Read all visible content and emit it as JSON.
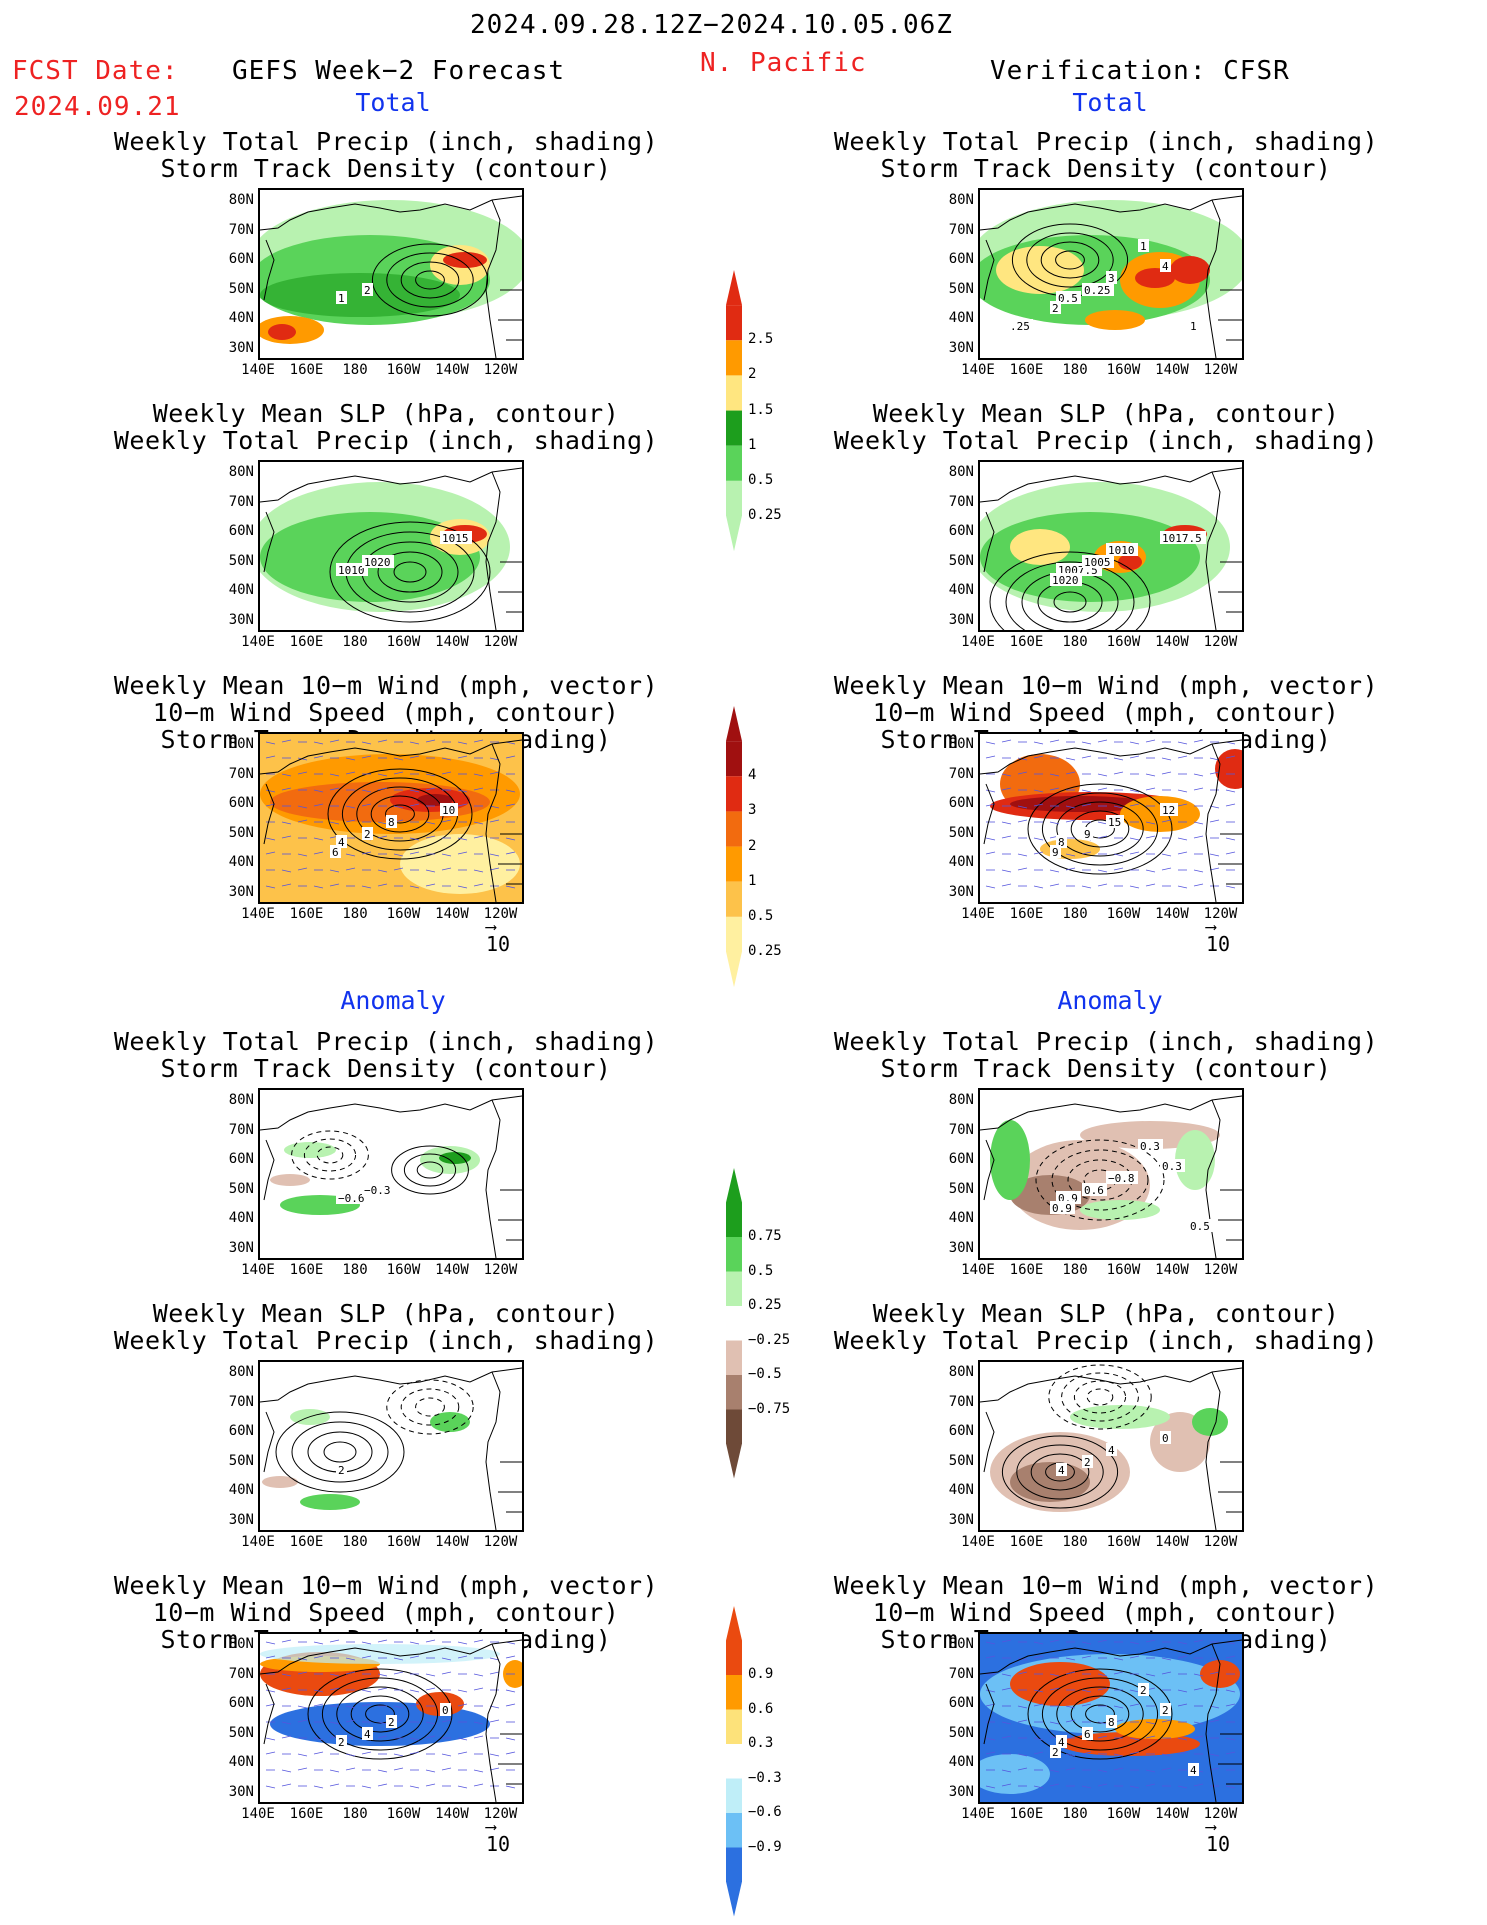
{
  "header": {
    "date_range": "2024.09.28.12Z−2024.10.05.06Z",
    "fcst_label": "FCST Date:",
    "fcst_date": "2024.09.21",
    "model_title": "GEFS Week−2 Forecast",
    "region": "N. Pacific",
    "verification": "Verification: CFSR"
  },
  "sections": {
    "total": "Total",
    "anomaly": "Anomaly"
  },
  "panel_titles": {
    "precip_track": [
      "Weekly Total Precip (inch, shading)",
      "Storm Track Density (contour)"
    ],
    "slp_precip": [
      "Weekly Mean SLP (hPa, contour)",
      "Weekly Total Precip (inch, shading)"
    ],
    "wind_track": [
      "Weekly Mean 10−m Wind (mph, vector)",
      "10−m Wind Speed (mph, contour)",
      "Storm Track Density (shading)"
    ]
  },
  "axes": {
    "lat_labels": [
      "80N",
      "70N",
      "60N",
      "50N",
      "40N",
      "30N"
    ],
    "lon_labels": [
      "140E",
      "160E",
      "180",
      "160W",
      "140W",
      "120W"
    ]
  },
  "vector_ref": "10",
  "colorbars": {
    "total_precip": {
      "labels": [
        "2.5",
        "2",
        "1.5",
        "1",
        "0.5",
        "0.25"
      ],
      "colors": [
        "#e02b12",
        "#ff9a00",
        "#ffe680",
        "#1d9e1d",
        "#5ad35a",
        "#b8f2b0"
      ]
    },
    "total_track": {
      "labels": [
        "4",
        "3",
        "2",
        "1",
        "0.5",
        "0.25"
      ],
      "colors": [
        "#a01010",
        "#e02b12",
        "#f26b0f",
        "#ff9a00",
        "#fdc24a",
        "#fff0a0"
      ]
    },
    "anom_precip": {
      "labels": [
        "0.75",
        "0.5",
        "0.25",
        "−0.25",
        "−0.5",
        "−0.75"
      ],
      "colors": [
        "#1d9e1d",
        "#5ad35a",
        "#b8f2b0",
        "#ffffff",
        "#e0c0b2",
        "#a8806e",
        "#6e4a38"
      ]
    },
    "anom_track": {
      "labels": [
        "0.9",
        "0.6",
        "0.3",
        "−0.3",
        "−0.6",
        "−0.9"
      ],
      "colors": [
        "#ea4a10",
        "#ff9a00",
        "#fde27a",
        "#ffffff",
        "#bfeef8",
        "#6cc0f5",
        "#2c70e0"
      ]
    }
  },
  "contour_labels": {
    "p1_left": [
      "1",
      "2"
    ],
    "p1_right": [
      "0.5",
      "0.25",
      "4",
      "3",
      "2",
      "1",
      "1",
      ".25"
    ],
    "p2_left": [
      "1010",
      "1020",
      "1015"
    ],
    "p2_right": [
      "1007.5",
      "1005",
      "1017.5",
      "1010",
      "1020"
    ],
    "p3_left": [
      "4",
      "2",
      "10",
      "8",
      "6"
    ],
    "p3_right": [
      "8",
      "9",
      "12",
      "15",
      "9"
    ],
    "p4_left": [
      "−0.6",
      "−0.3"
    ],
    "p4_right": [
      "0.9",
      "0.6",
      "0.3",
      "−0.8",
      "0.9",
      "0.3",
      "0.5"
    ],
    "p5_left": [
      "2"
    ],
    "p5_right": [
      "4",
      "2",
      "0",
      "4"
    ],
    "p6_left": [
      "2",
      "4",
      "0",
      "2"
    ],
    "p6_right": [
      "4",
      "6",
      "2",
      "8",
      "2",
      "2",
      "4"
    ]
  }
}
